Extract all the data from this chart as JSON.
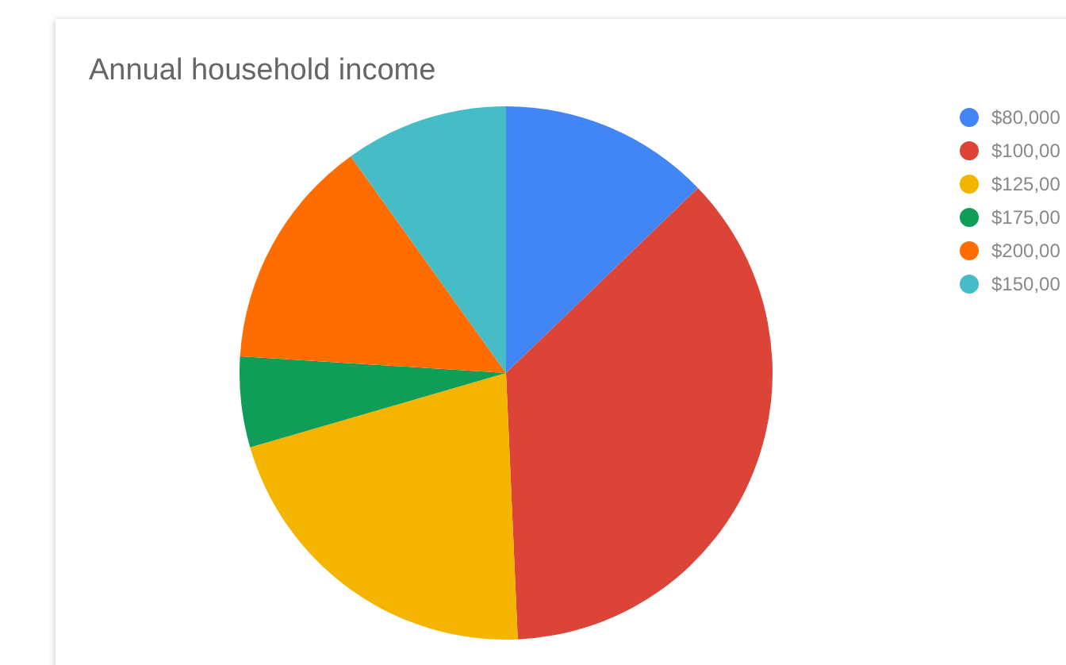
{
  "chart_data": {
    "type": "pie",
    "title": "Annual household income",
    "categories": [
      "$80,000",
      "$100,00",
      "$125,00",
      "$175,00",
      "$200,00",
      "$150,00"
    ],
    "values": [
      12.8,
      36.5,
      21.2,
      5.5,
      14.1,
      9.9
    ],
    "colors": [
      "#4285f4",
      "#db4437",
      "#f4b400",
      "#0f9d58",
      "#ff6d00",
      "#46bdc6"
    ],
    "legend": "right"
  }
}
